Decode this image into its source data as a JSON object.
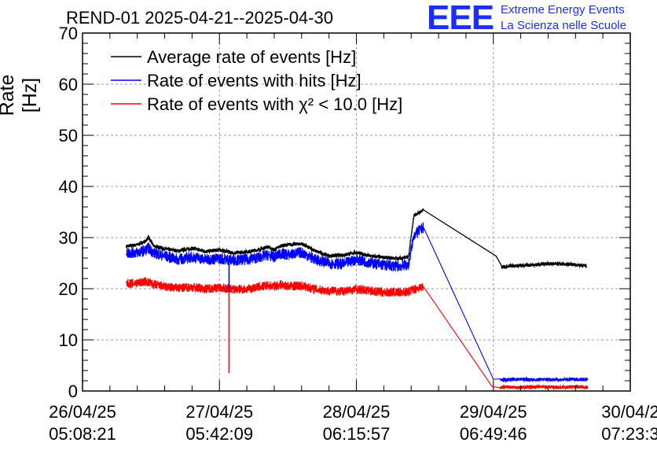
{
  "title": "REND-01 2025-04-21--2025-04-30",
  "logo": {
    "mark": "EEE",
    "line1": "Extreme Energy Events",
    "line2": "La Scienza nelle Scuole"
  },
  "colors": {
    "average": "#000000",
    "hits": "#0000ff",
    "chi2": "#ff0000",
    "grid": "#9a9a9a",
    "logo": "#1a2fff"
  },
  "chart_data": {
    "type": "line",
    "title": "REND-01 2025-04-21--2025-04-30",
    "ylabel": "Rate [Hz]",
    "xlabel": "",
    "ylim": [
      0,
      70
    ],
    "yticks": [
      0,
      10,
      20,
      30,
      40,
      50,
      60,
      70
    ],
    "xlim": [
      0,
      4
    ],
    "x_unit": "days since 26/04/25 05:08:21",
    "xticks": [
      {
        "x": 0,
        "date": "26/04/25",
        "time": "05:08:21"
      },
      {
        "x": 1,
        "date": "27/04/25",
        "time": "05:42:09"
      },
      {
        "x": 2,
        "date": "28/04/25",
        "time": "06:15:57"
      },
      {
        "x": 3,
        "date": "29/04/25",
        "time": "06:49:46"
      },
      {
        "x": 4,
        "date": "30/04/2",
        "time": "07:23:3"
      }
    ],
    "grid": true,
    "legend_position": "top-left",
    "series": [
      {
        "name": "Average rate of events [Hz]",
        "key": "average",
        "x": [
          0.32,
          0.4,
          0.46,
          0.48,
          0.52,
          0.6,
          0.7,
          0.8,
          0.9,
          1.0,
          1.1,
          1.2,
          1.3,
          1.35,
          1.4,
          1.45,
          1.5,
          1.6,
          1.7,
          1.8,
          1.9,
          2.0,
          2.1,
          2.2,
          2.3,
          2.35,
          2.38,
          2.42,
          2.49,
          3.02,
          3.06,
          3.12,
          3.2,
          3.3,
          3.4,
          3.5,
          3.6,
          3.68
        ],
        "y": [
          28.3,
          28.6,
          29.3,
          30.0,
          28.4,
          27.8,
          27.4,
          27.9,
          27.3,
          27.6,
          27.0,
          27.2,
          27.7,
          28.2,
          27.6,
          28.4,
          28.6,
          28.8,
          27.4,
          26.4,
          26.6,
          27.1,
          26.4,
          26.1,
          25.9,
          26.1,
          26.1,
          34.3,
          35.4,
          26.4,
          24.2,
          24.5,
          24.5,
          24.7,
          24.9,
          24.8,
          24.7,
          24.5
        ]
      },
      {
        "name": "Rate of events with hits [Hz]",
        "key": "hits",
        "x": [
          0.32,
          0.4,
          0.46,
          0.48,
          0.52,
          0.6,
          0.7,
          0.8,
          0.9,
          1.0,
          1.1,
          1.2,
          1.3,
          1.35,
          1.4,
          1.45,
          1.5,
          1.6,
          1.7,
          1.8,
          1.9,
          2.0,
          2.1,
          2.2,
          2.3,
          2.35,
          2.38,
          2.42,
          2.49,
          3.0,
          3.05,
          3.1,
          3.2,
          3.3,
          3.4,
          3.5,
          3.6,
          3.69
        ],
        "y": [
          27.0,
          27.1,
          27.5,
          28.0,
          27.0,
          26.4,
          25.7,
          26.2,
          25.7,
          25.9,
          25.6,
          25.7,
          26.2,
          26.6,
          26.2,
          26.9,
          26.6,
          27.1,
          25.7,
          25.0,
          24.8,
          25.7,
          25.1,
          24.6,
          24.4,
          24.6,
          24.6,
          30.5,
          32.0,
          2.3,
          2.2,
          2.2,
          2.3,
          2.2,
          2.3,
          2.2,
          2.3,
          2.2
        ]
      },
      {
        "name": "Rate of events with χ² < 10.0 [Hz]",
        "key": "chi2",
        "x": [
          0.32,
          0.4,
          0.46,
          0.48,
          0.52,
          0.6,
          0.7,
          0.8,
          0.9,
          1.0,
          1.1,
          1.2,
          1.3,
          1.35,
          1.4,
          1.45,
          1.5,
          1.6,
          1.7,
          1.8,
          1.9,
          2.0,
          2.1,
          2.2,
          2.3,
          2.35,
          2.38,
          2.42,
          2.49,
          2.99,
          3.05,
          3.1,
          3.2,
          3.3,
          3.4,
          3.5,
          3.6,
          3.69
        ],
        "y": [
          21.0,
          21.1,
          21.4,
          21.2,
          20.8,
          20.4,
          20.1,
          20.3,
          20.0,
          20.2,
          19.9,
          19.9,
          20.4,
          20.6,
          20.5,
          20.8,
          20.5,
          20.6,
          19.9,
          19.6,
          19.5,
          19.9,
          19.6,
          19.3,
          19.3,
          19.4,
          19.4,
          19.9,
          20.4,
          0.9,
          0.7,
          0.8,
          0.7,
          0.8,
          0.8,
          0.7,
          0.8,
          0.7
        ]
      }
    ],
    "annotations": [
      {
        "series": "chi2",
        "type": "spike",
        "x": 1.07,
        "y": 3.5
      },
      {
        "series": "hits",
        "type": "spike",
        "x": 1.07,
        "y": 19.5
      }
    ],
    "legend": [
      "Average rate of events [Hz]",
      "Rate of events with hits [Hz]",
      "Rate of events with χ² < 10.0 [Hz]"
    ]
  }
}
